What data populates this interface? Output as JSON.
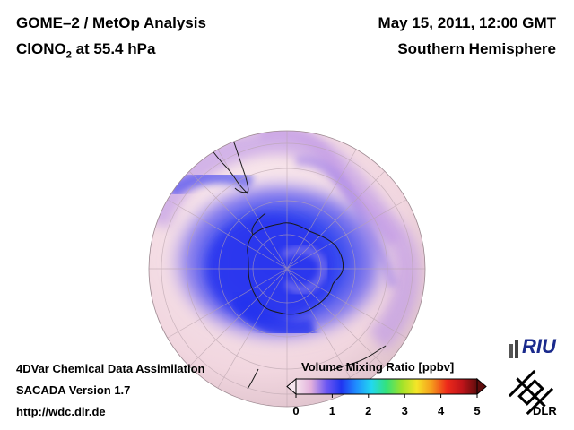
{
  "header": {
    "left_line1": "GOME–2 / MetOp Analysis",
    "left_line2_main": "ClONO",
    "left_line2_sub": "2",
    "left_line2_rest": " at 55.4 hPa",
    "right_line1": "May 15, 2011, 12:00 GMT",
    "right_line2": "Southern Hemisphere"
  },
  "footer": {
    "line1": "4DVar Chemical Data Assimilation",
    "line2": "SACADA Version 1.7",
    "line3": "http://wdc.dlr.de"
  },
  "colorbar": {
    "title": "Volume Mixing Ratio [ppbv]",
    "ticks": [
      "0",
      "1",
      "2",
      "3",
      "4",
      "5"
    ],
    "min": 0,
    "max": 5,
    "colors": [
      "#f6e6ee",
      "#e2b0dc",
      "#6f59f2",
      "#2035f0",
      "#1f8fff",
      "#22d8f0",
      "#34e27a",
      "#9fe22a",
      "#f5e528",
      "#f59a1c",
      "#ee2a1a",
      "#c0141a",
      "#5e0d0d"
    ]
  },
  "logos": {
    "riu": "RIU",
    "dlr": "DLR"
  },
  "map": {
    "projection": "orthographic, south pole centred",
    "background_color": "#f4dde6"
  }
}
